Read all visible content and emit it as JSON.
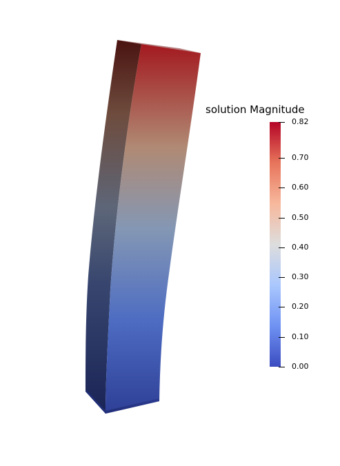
{
  "legend": {
    "title": "solution Magnitude",
    "range": [
      0.0,
      0.82
    ],
    "ticks": [
      {
        "value": 0.82,
        "label": "0.82"
      },
      {
        "value": 0.7,
        "label": "0.70"
      },
      {
        "value": 0.6,
        "label": "0.60"
      },
      {
        "value": 0.5,
        "label": "0.50"
      },
      {
        "value": 0.4,
        "label": "0.40"
      },
      {
        "value": 0.3,
        "label": "0.30"
      },
      {
        "value": 0.2,
        "label": "0.20"
      },
      {
        "value": 0.1,
        "label": "0.10"
      },
      {
        "value": 0.0,
        "label": "0.00"
      }
    ],
    "colormap": [
      "#3b4cc0",
      "#6f92f3",
      "#aac7fd",
      "#dddddd",
      "#f7b89c",
      "#e7745b",
      "#b40426"
    ]
  }
}
